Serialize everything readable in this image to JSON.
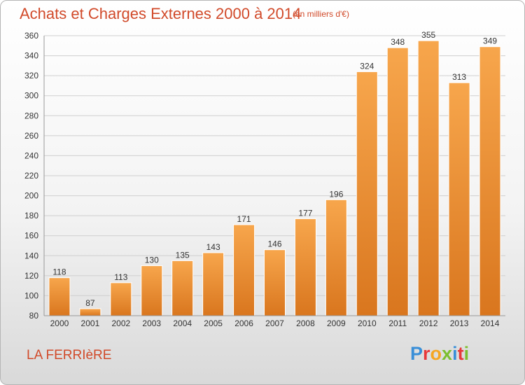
{
  "header": {
    "title": "Achats et Charges Externes 2000 à 2014",
    "subtitle": "(en milliers d'€)"
  },
  "footer": {
    "commune": "LA FERRIèRE",
    "logo_text": "Proxiti",
    "logo_colors": [
      "#3a8fd8",
      "#e8383a",
      "#f5a623",
      "#7cbf2f",
      "#3a8fd8",
      "#e8383a",
      "#7cbf2f"
    ]
  },
  "colors": {
    "bar_top": "#f7a64c",
    "bar_bottom": "#d9761e",
    "text_accent": "#d14a2a",
    "grid": "#cfcfcf"
  },
  "chart_data": {
    "type": "bar",
    "categories": [
      "2000",
      "2001",
      "2002",
      "2003",
      "2004",
      "2005",
      "2006",
      "2007",
      "2008",
      "2009",
      "2010",
      "2011",
      "2012",
      "2013",
      "2014"
    ],
    "values": [
      118,
      87,
      113,
      130,
      135,
      143,
      171,
      146,
      177,
      196,
      324,
      348,
      355,
      313,
      349
    ],
    "ylim": [
      80,
      360
    ],
    "yticks": [
      80,
      100,
      120,
      140,
      160,
      180,
      200,
      220,
      240,
      260,
      280,
      300,
      320,
      340,
      360
    ],
    "grid": true,
    "xlabel": "",
    "ylabel": ""
  }
}
